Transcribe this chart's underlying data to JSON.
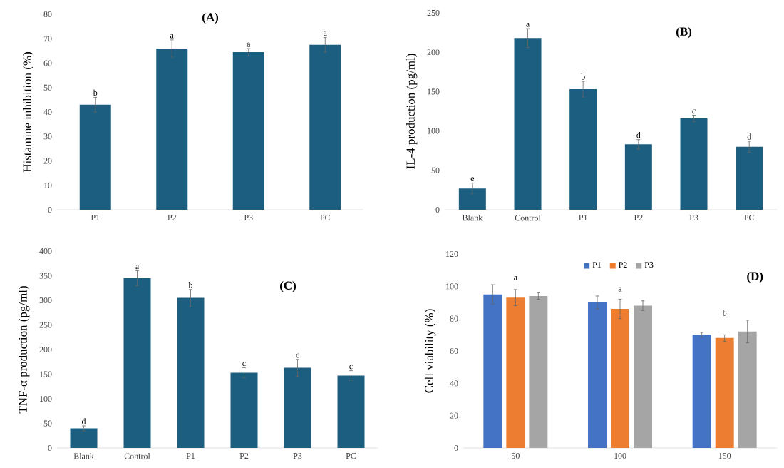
{
  "chart_data": [
    {
      "type": "bar",
      "title": "(A)",
      "ylabel": "Histamine inhibition (%)",
      "categories": [
        "P1",
        "P2",
        "P3",
        "PC"
      ],
      "values": [
        43,
        66,
        64.5,
        67.5
      ],
      "errors": [
        3,
        3.5,
        1.5,
        3
      ],
      "color": "#1b5e7f",
      "ylim": [
        0,
        80
      ],
      "yticks": [
        0,
        10,
        20,
        30,
        40,
        50,
        60,
        70,
        80
      ],
      "annotations": [
        {
          "text": "b",
          "x": "P1",
          "y": 46
        },
        {
          "text": "a",
          "x": "P2",
          "y": 69.5
        },
        {
          "text": "a",
          "x": "P3",
          "y": 66
        },
        {
          "text": "a",
          "x": "PC",
          "y": 70.5
        }
      ]
    },
    {
      "type": "bar",
      "title": "(B)",
      "ylabel": "IL-4 production (pg/ml)",
      "categories": [
        "Blank",
        "Control",
        "P1",
        "P2",
        "P3",
        "PC"
      ],
      "values": [
        27,
        218,
        153,
        83,
        116,
        80
      ],
      "errors": [
        7,
        12,
        10,
        6,
        4,
        7
      ],
      "color": "#1b5e7f",
      "ylim": [
        0,
        250
      ],
      "yticks": [
        0,
        50,
        100,
        150,
        200,
        250
      ],
      "annotations": [
        {
          "text": "e",
          "x": "Blank",
          "y": 34
        },
        {
          "text": "a",
          "x": "Control",
          "y": 230
        },
        {
          "text": "b",
          "x": "P1",
          "y": 163
        },
        {
          "text": "d",
          "x": "P2",
          "y": 89
        },
        {
          "text": "c",
          "x": "P3",
          "y": 120
        },
        {
          "text": "d",
          "x": "PC",
          "y": 87
        }
      ]
    },
    {
      "type": "bar",
      "title": "(C)",
      "ylabel": "TNF-α production (pg/ml)",
      "categories": [
        "Blank",
        "Control",
        "P1",
        "P2",
        "P3",
        "PC"
      ],
      "values": [
        40,
        345,
        305,
        153,
        163,
        147
      ],
      "errors": [
        5,
        15,
        17,
        10,
        17,
        10
      ],
      "color": "#1b5e7f",
      "ylim": [
        0,
        400
      ],
      "yticks": [
        0,
        50,
        100,
        150,
        200,
        250,
        300,
        350,
        400
      ],
      "annotations": [
        {
          "text": "d",
          "x": "Blank",
          "y": 45
        },
        {
          "text": "a",
          "x": "Control",
          "y": 360
        },
        {
          "text": "b",
          "x": "P1",
          "y": 322
        },
        {
          "text": "c",
          "x": "P2",
          "y": 163
        },
        {
          "text": "c",
          "x": "P3",
          "y": 180
        },
        {
          "text": "c",
          "x": "PC",
          "y": 157
        }
      ]
    },
    {
      "type": "bar",
      "title": "(D)",
      "ylabel": "Cell viability (%)",
      "categories": [
        "50",
        "100",
        "150"
      ],
      "ylim": [
        0,
        120
      ],
      "yticks": [
        0,
        20,
        40,
        60,
        80,
        100,
        120
      ],
      "legend": "top",
      "series": [
        {
          "name": "P1",
          "color": "#4472c4",
          "values": [
            95,
            90,
            70
          ],
          "errors": [
            6,
            4,
            1.5
          ]
        },
        {
          "name": "P2",
          "color": "#ed7d31",
          "values": [
            93,
            86,
            68
          ],
          "errors": [
            5,
            6,
            2
          ]
        },
        {
          "name": "P3",
          "color": "#a5a5a5",
          "values": [
            94,
            88,
            72
          ],
          "errors": [
            2,
            3,
            7
          ]
        }
      ],
      "annotations": [
        "a",
        "a",
        "b"
      ]
    }
  ]
}
